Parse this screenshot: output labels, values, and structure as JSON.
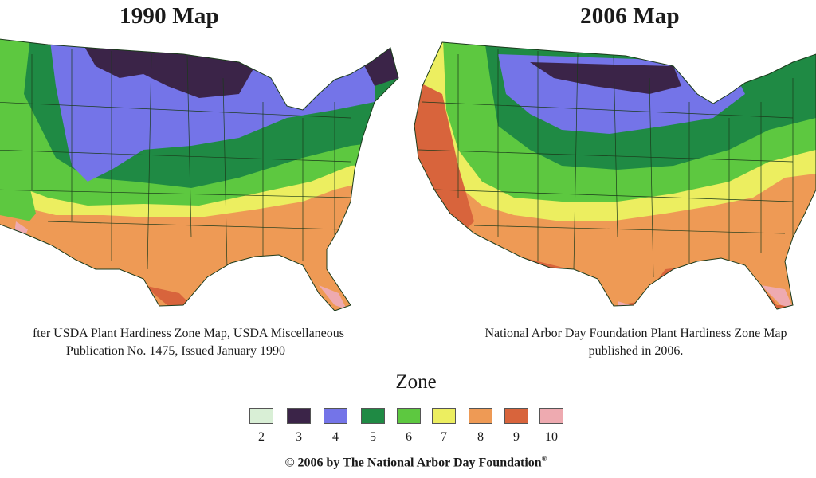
{
  "left_map": {
    "title": "1990 Map",
    "caption_line1": "fter USDA Plant Hardiness Zone Map, USDA Miscellaneous",
    "caption_line2": "Publication No. 1475, Issued January 1990"
  },
  "right_map": {
    "title": "2006 Map",
    "caption_line1": "National Arbor Day Foundation Plant Hardiness Zone Map",
    "caption_line2": "published in 2006."
  },
  "legend": {
    "heading": "Zone",
    "zones": [
      {
        "label": "2",
        "color": "#d9efd6"
      },
      {
        "label": "3",
        "color": "#3b2448"
      },
      {
        "label": "4",
        "color": "#7474e8"
      },
      {
        "label": "5",
        "color": "#1f8a44"
      },
      {
        "label": "6",
        "color": "#5dc840"
      },
      {
        "label": "7",
        "color": "#ecee60"
      },
      {
        "label": "8",
        "color": "#ee9a55"
      },
      {
        "label": "9",
        "color": "#d8643c"
      },
      {
        "label": "10",
        "color": "#eeaab0"
      }
    ]
  },
  "footer": {
    "copyright": "© 2006 by The National Arbor Day Foundation",
    "mark": "®"
  },
  "colors": {
    "state_border": "#1b3a1b",
    "background": "#ffffff"
  }
}
